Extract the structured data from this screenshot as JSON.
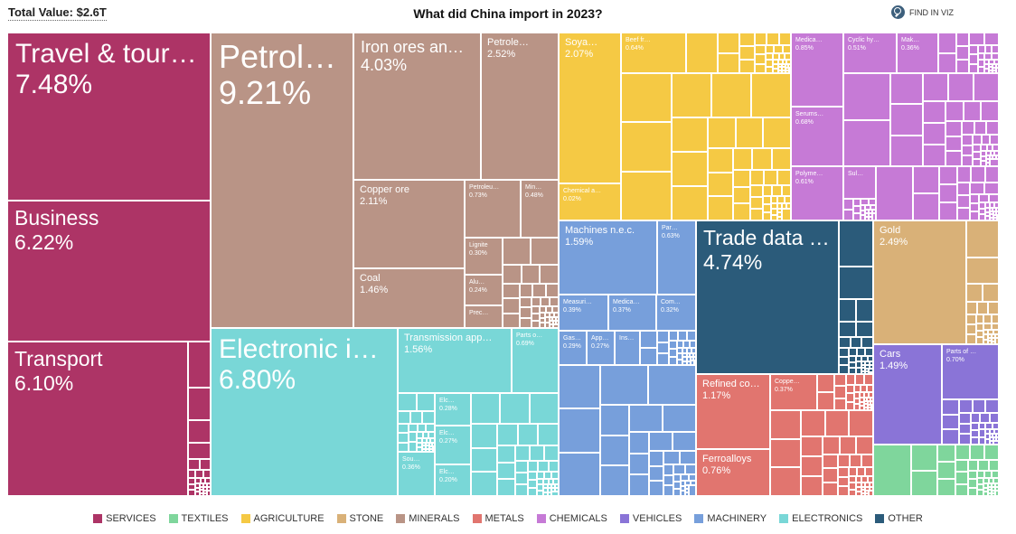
{
  "header": {
    "total_value": "Total Value: $2.6T",
    "title": "What did China import in 2023?",
    "find_label": "FIND IN VIZ",
    "find_icon": "search-icon"
  },
  "colors": {
    "SERVICES": "#ad3466",
    "TEXTILES": "#7fd69c",
    "AGRICULTURE": "#f5c944",
    "STONE": "#d9b178",
    "MINERALS": "#b99486",
    "METALS": "#e1756f",
    "CHEMICALS": "#c67ad6",
    "VEHICLES": "#8a74d7",
    "MACHINERY": "#779fdb",
    "ELECTRONICS": "#79d7d7",
    "OTHER": "#2b5b7a"
  },
  "legend": [
    "SERVICES",
    "TEXTILES",
    "AGRICULTURE",
    "STONE",
    "MINERALS",
    "METALS",
    "CHEMICALS",
    "VEHICLES",
    "MACHINERY",
    "ELECTRONICS",
    "OTHER"
  ],
  "chart_data": {
    "type": "treemap",
    "title": "What did China import in 2023?",
    "total": "$2.6T",
    "tiles": [
      {
        "label": "Travel & touri…",
        "pct": "7.48%",
        "category": "SERVICES"
      },
      {
        "label": "Business",
        "pct": "6.22%",
        "category": "SERVICES"
      },
      {
        "label": "Transport",
        "pct": "6.10%",
        "category": "SERVICES"
      },
      {
        "label": "Petrol…",
        "pct": "9.21%",
        "category": "MINERALS"
      },
      {
        "label": "Iron ores an…",
        "pct": "4.03%",
        "category": "MINERALS"
      },
      {
        "label": "Petrole…",
        "pct": "2.52%",
        "category": "MINERALS"
      },
      {
        "label": "Copper ore",
        "pct": "2.11%",
        "category": "MINERALS"
      },
      {
        "label": "Coal",
        "pct": "1.46%",
        "category": "MINERALS"
      },
      {
        "label": "Petroleu…",
        "pct": "0.73%",
        "category": "MINERALS"
      },
      {
        "label": "Min…",
        "pct": "0.48%",
        "category": "MINERALS"
      },
      {
        "label": "Lignite",
        "pct": "0.30%",
        "category": "MINERALS"
      },
      {
        "label": "Alu…",
        "pct": "0.24%",
        "category": "MINERALS"
      },
      {
        "label": "Prec…",
        "pct": "",
        "category": "MINERALS"
      },
      {
        "label": "Electronic in…",
        "pct": "6.80%",
        "category": "ELECTRONICS"
      },
      {
        "label": "Transmission app…",
        "pct": "1.56%",
        "category": "ELECTRONICS"
      },
      {
        "label": "Parts o…",
        "pct": "0.69%",
        "category": "ELECTRONICS"
      },
      {
        "label": "Elc…",
        "pct": "0.28%",
        "category": "ELECTRONICS"
      },
      {
        "label": "Elc…",
        "pct": "0.27%",
        "category": "ELECTRONICS"
      },
      {
        "label": "Elc…",
        "pct": "0.20%",
        "category": "ELECTRONICS"
      },
      {
        "label": "Sou…",
        "pct": "0.36%",
        "category": "ELECTRONICS"
      },
      {
        "label": "Soya…",
        "pct": "2.07%",
        "category": "AGRICULTURE"
      },
      {
        "label": "Chemical a…",
        "pct": "0.02%",
        "category": "AGRICULTURE"
      },
      {
        "label": "Beef fr…",
        "pct": "0.64%",
        "category": "AGRICULTURE"
      },
      {
        "label": "Medica…",
        "pct": "0.85%",
        "category": "CHEMICALS"
      },
      {
        "label": "Serums…",
        "pct": "0.68%",
        "category": "CHEMICALS"
      },
      {
        "label": "Polyme…",
        "pct": "0.61%",
        "category": "CHEMICALS"
      },
      {
        "label": "Cyclic hy…",
        "pct": "0.51%",
        "category": "CHEMICALS"
      },
      {
        "label": "Mak…",
        "pct": "0.36%",
        "category": "CHEMICALS"
      },
      {
        "label": "Sul…",
        "pct": "",
        "category": "CHEMICALS"
      },
      {
        "label": "Machines n.e.c.",
        "pct": "1.59%",
        "category": "MACHINERY"
      },
      {
        "label": "Par…",
        "pct": "0.63%",
        "category": "MACHINERY"
      },
      {
        "label": "Measuri…",
        "pct": "0.39%",
        "category": "MACHINERY"
      },
      {
        "label": "Medica…",
        "pct": "0.37%",
        "category": "MACHINERY"
      },
      {
        "label": "Com…",
        "pct": "0.32%",
        "category": "MACHINERY"
      },
      {
        "label": "Gas…",
        "pct": "0.29%",
        "category": "MACHINERY"
      },
      {
        "label": "App…",
        "pct": "0.27%",
        "category": "MACHINERY"
      },
      {
        "label": "Ins…",
        "pct": "",
        "category": "MACHINERY"
      },
      {
        "label": "Trade data …",
        "pct": "4.74%",
        "category": "OTHER"
      },
      {
        "label": "Refined co…",
        "pct": "1.17%",
        "category": "METALS"
      },
      {
        "label": "Ferroalloys",
        "pct": "0.76%",
        "category": "METALS"
      },
      {
        "label": "Coppe…",
        "pct": "0.37%",
        "category": "METALS"
      },
      {
        "label": "Gold",
        "pct": "2.49%",
        "category": "STONE"
      },
      {
        "label": "Cars",
        "pct": "1.49%",
        "category": "VEHICLES"
      },
      {
        "label": "Parts of …",
        "pct": "0.70%",
        "category": "VEHICLES"
      }
    ]
  }
}
